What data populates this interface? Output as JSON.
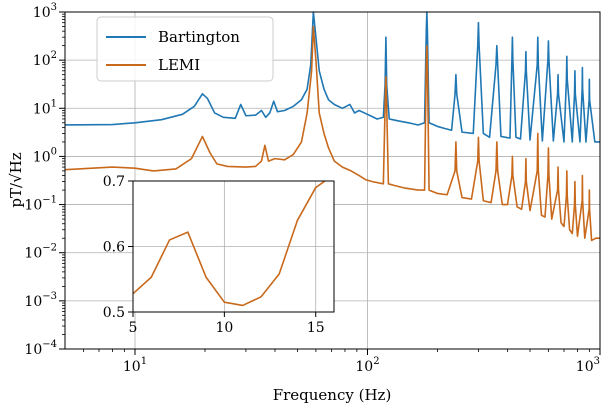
{
  "chart_data": [
    {
      "type": "line",
      "title": "",
      "xlabel": "Frequency (Hz)",
      "ylabel": "pT/√Hz",
      "xscale": "log",
      "yscale": "log",
      "xlim": [
        5,
        1000
      ],
      "ylim": [
        0.0001,
        1000
      ],
      "grid": true,
      "legend": "top-left",
      "x_ticks": [
        {
          "value": 10,
          "label": "10",
          "sup": "1"
        },
        {
          "value": 100,
          "label": "10",
          "sup": "2"
        },
        {
          "value": 1000,
          "label": "10",
          "sup": "3"
        }
      ],
      "y_ticks": [
        {
          "value": 0.0001,
          "label": "10",
          "sup": "−4"
        },
        {
          "value": 0.001,
          "label": "10",
          "sup": "−3"
        },
        {
          "value": 0.01,
          "label": "10",
          "sup": "−2"
        },
        {
          "value": 0.1,
          "label": "10",
          "sup": "−1"
        },
        {
          "value": 1,
          "label": "10",
          "sup": "0"
        },
        {
          "value": 10,
          "label": "10",
          "sup": "1"
        },
        {
          "value": 100,
          "label": "10",
          "sup": "2"
        },
        {
          "value": 1000,
          "label": "10",
          "sup": "3"
        }
      ],
      "series": [
        {
          "name": "Bartington",
          "color": "#1f77b4",
          "points": [
            [
              5,
              4.5
            ],
            [
              8,
              4.6
            ],
            [
              10,
              5.0
            ],
            [
              13,
              5.8
            ],
            [
              16,
              7.5
            ],
            [
              18,
              11
            ],
            [
              19.5,
              20
            ],
            [
              20.5,
              16
            ],
            [
              22,
              8
            ],
            [
              24,
              6.5
            ],
            [
              27,
              6.2
            ],
            [
              28.5,
              12
            ],
            [
              30,
              7
            ],
            [
              33,
              7.2
            ],
            [
              35,
              9
            ],
            [
              36.5,
              6.5
            ],
            [
              38,
              8
            ],
            [
              39.5,
              14
            ],
            [
              41,
              8.5
            ],
            [
              44,
              9
            ],
            [
              48,
              11
            ],
            [
              52,
              15
            ],
            [
              55,
              25
            ],
            [
              57,
              80
            ],
            [
              58.5,
              1000
            ],
            [
              60,
              300
            ],
            [
              62,
              60
            ],
            [
              65,
              25
            ],
            [
              68,
              15
            ],
            [
              72,
              12
            ],
            [
              78,
              10
            ],
            [
              84,
              12
            ],
            [
              88,
              8
            ],
            [
              92,
              9
            ],
            [
              97,
              8
            ],
            [
              103,
              7
            ],
            [
              110,
              6
            ],
            [
              117,
              6.5
            ],
            [
              119,
              30
            ],
            [
              120,
              300
            ],
            [
              121,
              30
            ],
            [
              124,
              6
            ],
            [
              135,
              5.5
            ],
            [
              150,
              5
            ],
            [
              165,
              4.5
            ],
            [
              176,
              5
            ],
            [
              179,
              400
            ],
            [
              180,
              1000
            ],
            [
              181,
              400
            ],
            [
              184,
              5
            ],
            [
              200,
              4.2
            ],
            [
              215,
              3.8
            ],
            [
              230,
              3.5
            ],
            [
              238,
              20
            ],
            [
              240,
              50
            ],
            [
              242,
              20
            ],
            [
              255,
              3.2
            ],
            [
              285,
              3
            ],
            [
              298,
              200
            ],
            [
              300,
              600
            ],
            [
              302,
              200
            ],
            [
              315,
              3
            ],
            [
              335,
              2.5
            ],
            [
              357,
              80
            ],
            [
              360,
              200
            ],
            [
              363,
              80
            ],
            [
              375,
              2.6
            ],
            [
              410,
              2.4
            ],
            [
              418,
              100
            ],
            [
              420,
              300
            ],
            [
              422,
              100
            ],
            [
              435,
              2.5
            ],
            [
              455,
              2.3
            ],
            [
              478,
              60
            ],
            [
              480,
              150
            ],
            [
              482,
              60
            ],
            [
              500,
              2.2
            ],
            [
              537,
              80
            ],
            [
              540,
              300
            ],
            [
              543,
              80
            ],
            [
              565,
              2.1
            ],
            [
              597,
              100
            ],
            [
              600,
              250
            ],
            [
              603,
              100
            ],
            [
              630,
              2.1
            ],
            [
              657,
              20
            ],
            [
              660,
              50
            ],
            [
              663,
              20
            ],
            [
              700,
              2
            ],
            [
              717,
              40
            ],
            [
              720,
              120
            ],
            [
              723,
              40
            ],
            [
              760,
              2
            ],
            [
              777,
              20
            ],
            [
              780,
              60
            ],
            [
              783,
              20
            ],
            [
              820,
              2
            ],
            [
              838,
              25
            ],
            [
              840,
              70
            ],
            [
              842,
              25
            ],
            [
              870,
              2
            ],
            [
              898,
              15
            ],
            [
              900,
              40
            ],
            [
              902,
              15
            ],
            [
              950,
              2
            ],
            [
              1000,
              2
            ]
          ]
        },
        {
          "name": "LEMI",
          "color": "#c8691c",
          "points": [
            [
              5,
              0.53
            ],
            [
              8,
              0.6
            ],
            [
              10,
              0.57
            ],
            [
              12,
              0.5
            ],
            [
              15,
              0.55
            ],
            [
              17.5,
              0.9
            ],
            [
              19.5,
              2.6
            ],
            [
              21,
              1.2
            ],
            [
              22.5,
              0.7
            ],
            [
              25,
              0.62
            ],
            [
              30,
              0.6
            ],
            [
              33,
              0.62
            ],
            [
              35,
              0.8
            ],
            [
              36.2,
              1.7
            ],
            [
              37.5,
              0.8
            ],
            [
              40,
              0.9
            ],
            [
              44,
              0.85
            ],
            [
              48,
              1.1
            ],
            [
              52,
              2
            ],
            [
              55,
              8
            ],
            [
              57.5,
              60
            ],
            [
              58.5,
              500
            ],
            [
              60,
              100
            ],
            [
              62,
              8
            ],
            [
              65,
              3
            ],
            [
              68,
              1.5
            ],
            [
              72,
              0.8
            ],
            [
              78,
              0.6
            ],
            [
              85,
              0.5
            ],
            [
              92,
              0.4
            ],
            [
              98,
              0.33
            ],
            [
              105,
              0.3
            ],
            [
              117,
              0.27
            ],
            [
              119,
              10
            ],
            [
              120,
              45
            ],
            [
              121,
              10
            ],
            [
              123,
              0.27
            ],
            [
              130,
              0.25
            ],
            [
              145,
              0.22
            ],
            [
              165,
              0.2
            ],
            [
              176,
              0.2
            ],
            [
              179,
              80
            ],
            [
              180,
              200
            ],
            [
              181,
              80
            ],
            [
              184,
              0.2
            ],
            [
              200,
              0.17
            ],
            [
              220,
              0.16
            ],
            [
              238,
              0.5
            ],
            [
              240,
              2
            ],
            [
              242,
              0.5
            ],
            [
              255,
              0.14
            ],
            [
              280,
              0.13
            ],
            [
              298,
              0.8
            ],
            [
              300,
              2.5
            ],
            [
              302,
              0.8
            ],
            [
              315,
              0.12
            ],
            [
              340,
              0.11
            ],
            [
              357,
              0.5
            ],
            [
              360,
              2
            ],
            [
              363,
              0.5
            ],
            [
              380,
              0.1
            ],
            [
              400,
              0.1
            ],
            [
              418,
              0.4
            ],
            [
              420,
              1
            ],
            [
              422,
              0.4
            ],
            [
              440,
              0.09
            ],
            [
              460,
              0.08
            ],
            [
              478,
              0.3
            ],
            [
              480,
              0.9
            ],
            [
              482,
              0.3
            ],
            [
              500,
              0.075
            ],
            [
              537,
              0.5
            ],
            [
              540,
              3
            ],
            [
              543,
              0.5
            ],
            [
              560,
              0.06
            ],
            [
              580,
              0.055
            ],
            [
              597,
              0.4
            ],
            [
              600,
              1.5
            ],
            [
              603,
              0.4
            ],
            [
              620,
              0.05
            ],
            [
              657,
              0.2
            ],
            [
              660,
              0.6
            ],
            [
              663,
              0.2
            ],
            [
              680,
              0.042
            ],
            [
              700,
              0.035
            ],
            [
              717,
              0.15
            ],
            [
              720,
              0.5
            ],
            [
              723,
              0.15
            ],
            [
              740,
              0.03
            ],
            [
              760,
              0.025
            ],
            [
              777,
              0.1
            ],
            [
              780,
              0.3
            ],
            [
              783,
              0.1
            ],
            [
              800,
              0.022
            ],
            [
              838,
              0.12
            ],
            [
              840,
              0.4
            ],
            [
              842,
              0.12
            ],
            [
              860,
              0.02
            ],
            [
              898,
              0.08
            ],
            [
              900,
              0.2
            ],
            [
              902,
              0.08
            ],
            [
              920,
              0.018
            ],
            [
              960,
              0.02
            ],
            [
              1000,
              0.02
            ]
          ]
        }
      ]
    },
    {
      "type": "line",
      "title": "",
      "xlabel": "",
      "ylabel": "",
      "xscale": "linear",
      "yscale": "linear",
      "xlim": [
        5,
        16
      ],
      "ylim": [
        0.5,
        0.7
      ],
      "grid": true,
      "x_ticks": [
        {
          "value": 5,
          "label": "5"
        },
        {
          "value": 10,
          "label": "10"
        },
        {
          "value": 15,
          "label": "15"
        }
      ],
      "y_ticks": [
        {
          "value": 0.5,
          "label": "0.5"
        },
        {
          "value": 0.6,
          "label": "0.6"
        },
        {
          "value": 0.7,
          "label": "0.7"
        }
      ],
      "series": [
        {
          "name": "LEMI",
          "color": "#c8691c",
          "points": [
            [
              5,
              0.528
            ],
            [
              6,
              0.553
            ],
            [
              7,
              0.61
            ],
            [
              8,
              0.622
            ],
            [
              9,
              0.553
            ],
            [
              10,
              0.515
            ],
            [
              11,
              0.51
            ],
            [
              12,
              0.523
            ],
            [
              13,
              0.558
            ],
            [
              14,
              0.64
            ],
            [
              15,
              0.69
            ],
            [
              15.5,
              0.7
            ]
          ]
        }
      ]
    }
  ]
}
